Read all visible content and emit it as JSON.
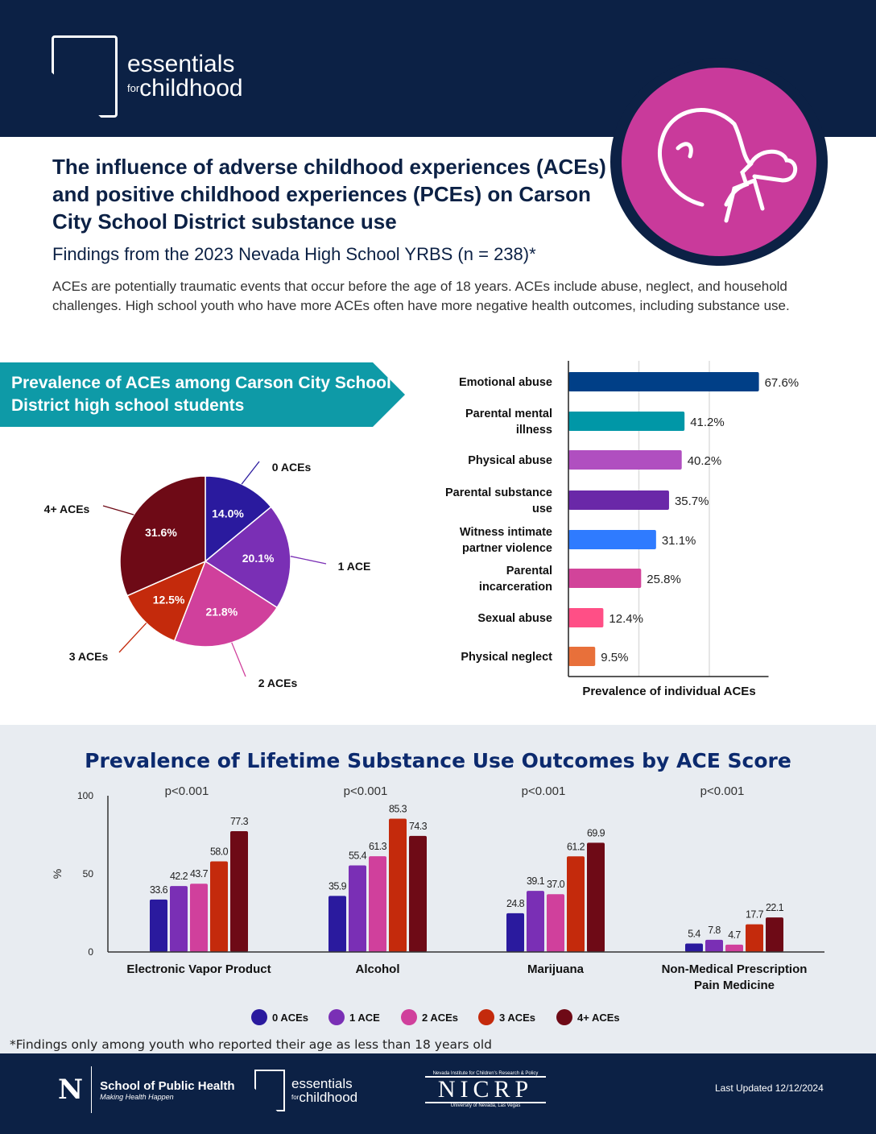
{
  "header": {
    "logo_line1": "essentials",
    "logo_for": "for",
    "logo_line2": "childhood"
  },
  "title": "The influence of adverse childhood experiences (ACEs) and positive childhood experiences (PCEs) on Carson City School District substance use",
  "subtitle": "Findings from the 2023 Nevada High School YRBS (n = 238)*",
  "intro": "ACEs are potentially traumatic events that occur before the age of 18 years. ACEs include abuse, neglect, and household challenges. High school youth who have more ACEs often have more negative health outcomes, including substance use.",
  "banner": "Prevalence of ACEs among Carson City School District high school students",
  "bottom_title": "Prevalence of Lifetime Substance Use Outcomes by ACE Score",
  "footnote": "*Findings only among youth who reported their age as less than 18 years old",
  "footer": {
    "n": "N",
    "sph": "School of Public Health",
    "sph_tag": "Making Health Happen",
    "efc1": "essentials",
    "efc_for": "for",
    "efc2": "childhood",
    "nicrp_top": "Nevada Institute for Children's Research & Policy",
    "nicrp": "NICRP",
    "nicrp_bottom": "University of Nevada, Las Vegas",
    "updated": "Last Updated 12/12/2024"
  },
  "chart_data": [
    {
      "type": "pie",
      "categories": [
        "0 ACEs",
        "1 ACE",
        "2 ACEs",
        "3 ACEs",
        "4+ ACEs"
      ],
      "values": [
        14.0,
        20.1,
        21.8,
        12.5,
        31.6
      ],
      "labels": [
        "14.0%",
        "20.1%",
        "21.8%",
        "12.5%",
        "31.6%"
      ],
      "colors": [
        "#2a1a9e",
        "#7a2fb5",
        "#d0409c",
        "#c42a0c",
        "#6e0a16"
      ]
    },
    {
      "type": "bar",
      "orientation": "horizontal",
      "categories": [
        "Emotional abuse",
        "Parental mental illness",
        "Physical abuse",
        "Parental substance use",
        "Witness intimate partner violence",
        "Parental incarceration",
        "Sexual abuse",
        "Physical neglect"
      ],
      "values": [
        67.6,
        41.2,
        40.2,
        35.7,
        31.1,
        25.8,
        12.4,
        9.5
      ],
      "labels": [
        "67.6%",
        "41.2%",
        "40.2%",
        "35.7%",
        "31.1%",
        "25.8%",
        "12.4%",
        "9.5%"
      ],
      "colors": [
        "#003f87",
        "#0097a7",
        "#b04fc0",
        "#6a28a8",
        "#2f7bff",
        "#d2449a",
        "#ff4f86",
        "#e8703a"
      ],
      "xlabel": "Prevalence of individual ACEs",
      "xlim": [
        0,
        71
      ],
      "grid": true
    },
    {
      "type": "bar",
      "categories": [
        "Electronic Vapor Product",
        "Alcohol",
        "Marijuana",
        "Non-Medical Prescription Pain Medicine"
      ],
      "p_values": [
        "p<0.001",
        "p<0.001",
        "p<0.001",
        "p<0.001"
      ],
      "series": [
        {
          "name": "0 ACEs",
          "color": "#2a1a9e",
          "values": [
            33.6,
            35.9,
            24.8,
            5.4
          ]
        },
        {
          "name": "1 ACE",
          "color": "#7a2fb5",
          "values": [
            42.2,
            55.4,
            39.1,
            7.8
          ]
        },
        {
          "name": "2 ACEs",
          "color": "#d0409c",
          "values": [
            43.7,
            61.3,
            37.0,
            4.7
          ]
        },
        {
          "name": "3 ACEs",
          "color": "#c42a0c",
          "values": [
            58.0,
            85.3,
            61.2,
            17.7
          ]
        },
        {
          "name": "4+ ACEs",
          "color": "#6e0a16",
          "values": [
            77.3,
            74.3,
            69.9,
            22.1
          ]
        }
      ],
      "ylabel": "%",
      "ylim": [
        0,
        100
      ],
      "yticks": [
        "0",
        "50",
        "100"
      ],
      "legend": "bottom"
    }
  ]
}
